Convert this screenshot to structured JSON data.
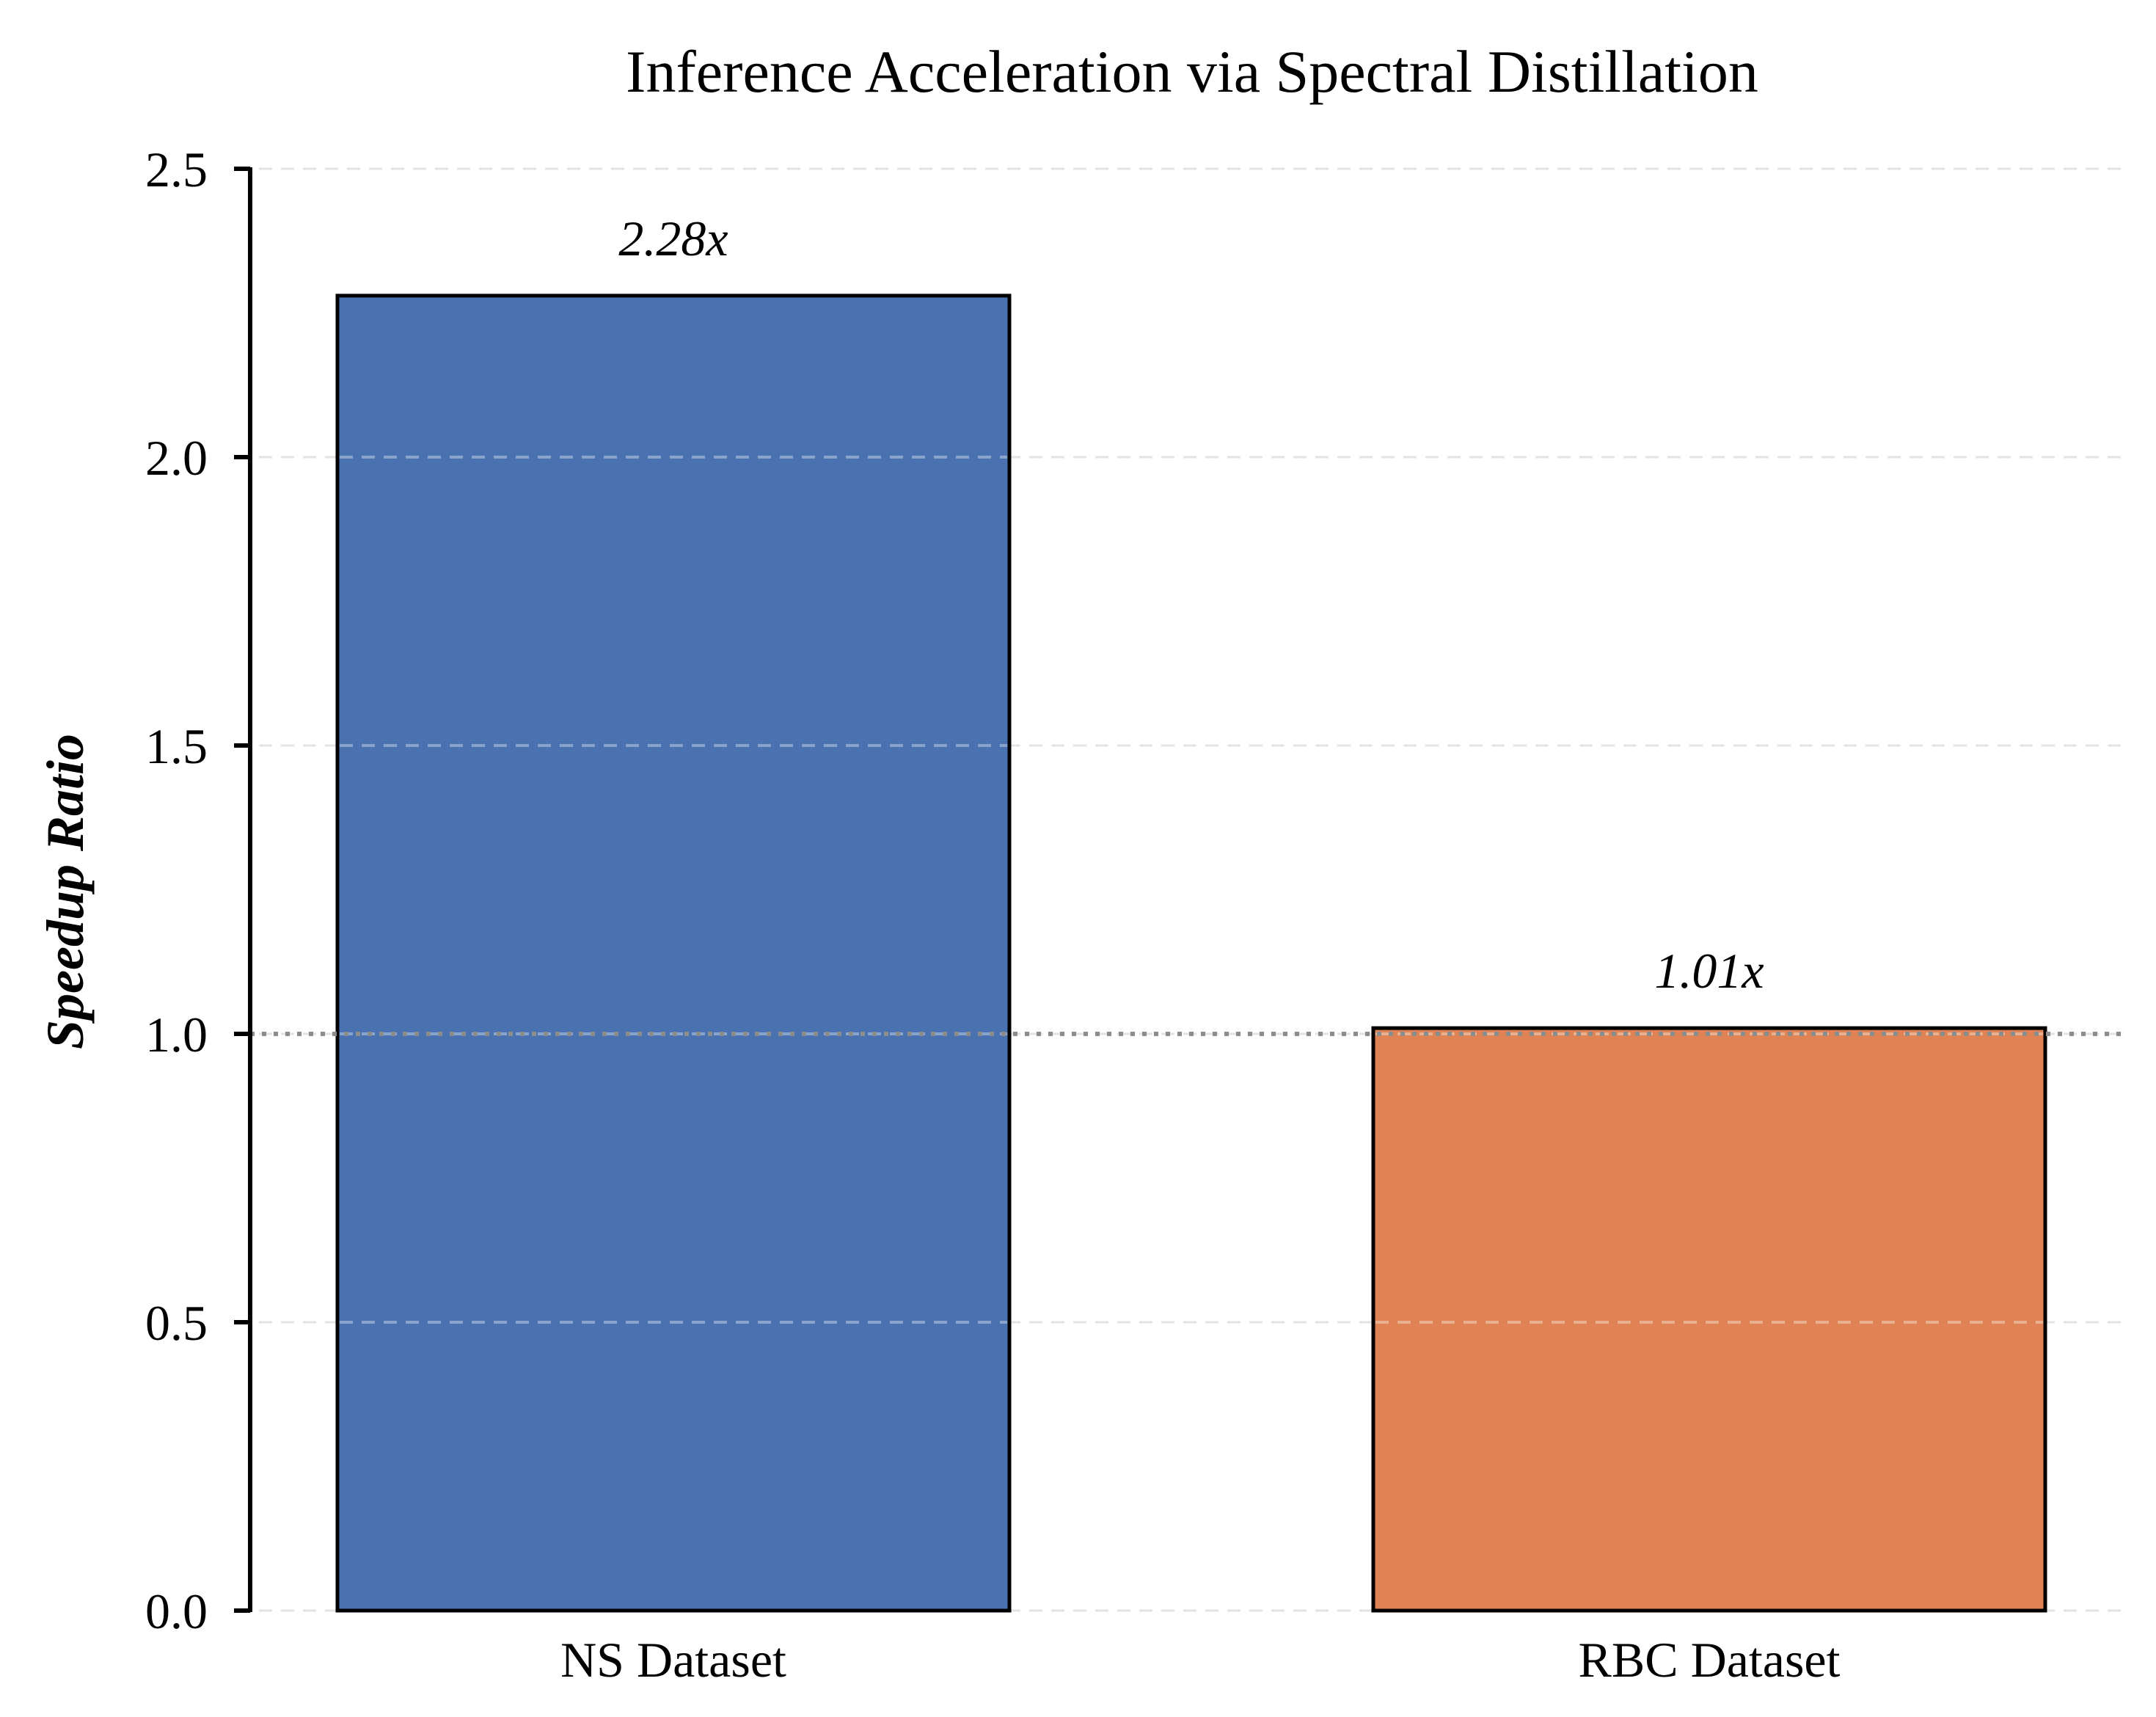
{
  "chart_data": {
    "type": "bar",
    "title": "Inference Acceleration via Spectral Distillation",
    "xlabel": "",
    "ylabel": "Speedup Ratio",
    "categories": [
      "NS Dataset",
      "RBC Dataset"
    ],
    "values": [
      2.28,
      1.01
    ],
    "data_labels": [
      "2.28x",
      "1.01x"
    ],
    "colors": [
      "#4a72b0",
      "#df8355"
    ],
    "ylim": [
      0,
      2.5
    ],
    "yticks": [
      0.0,
      0.5,
      1.0,
      1.5,
      2.0,
      2.5
    ],
    "ytick_labels": [
      "0.0",
      "0.5",
      "1.0",
      "1.5",
      "2.0",
      "2.5"
    ],
    "grid": true,
    "reference_line": {
      "value": 1.0,
      "style": "dotted",
      "color": "#8c8c8c"
    }
  }
}
